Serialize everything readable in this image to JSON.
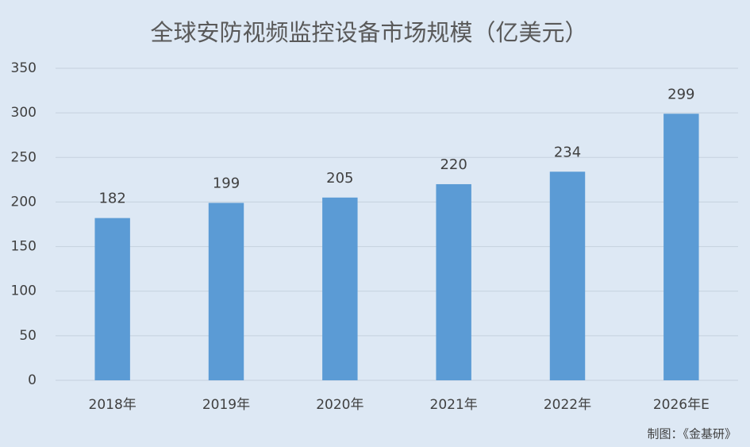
{
  "chart_data": {
    "type": "bar",
    "title": "全球安防视频监控设备市场规模（亿美元）",
    "categories": [
      "2018年",
      "2019年",
      "2020年",
      "2021年",
      "2022年",
      "2026年E"
    ],
    "values": [
      182,
      199,
      205,
      220,
      234,
      299
    ],
    "color": "#5b9bd5",
    "ylim": [
      0,
      350
    ],
    "yticks": [
      0,
      50,
      100,
      150,
      200,
      250,
      300,
      350
    ],
    "grid": true,
    "source": "制图：《金基研》"
  }
}
